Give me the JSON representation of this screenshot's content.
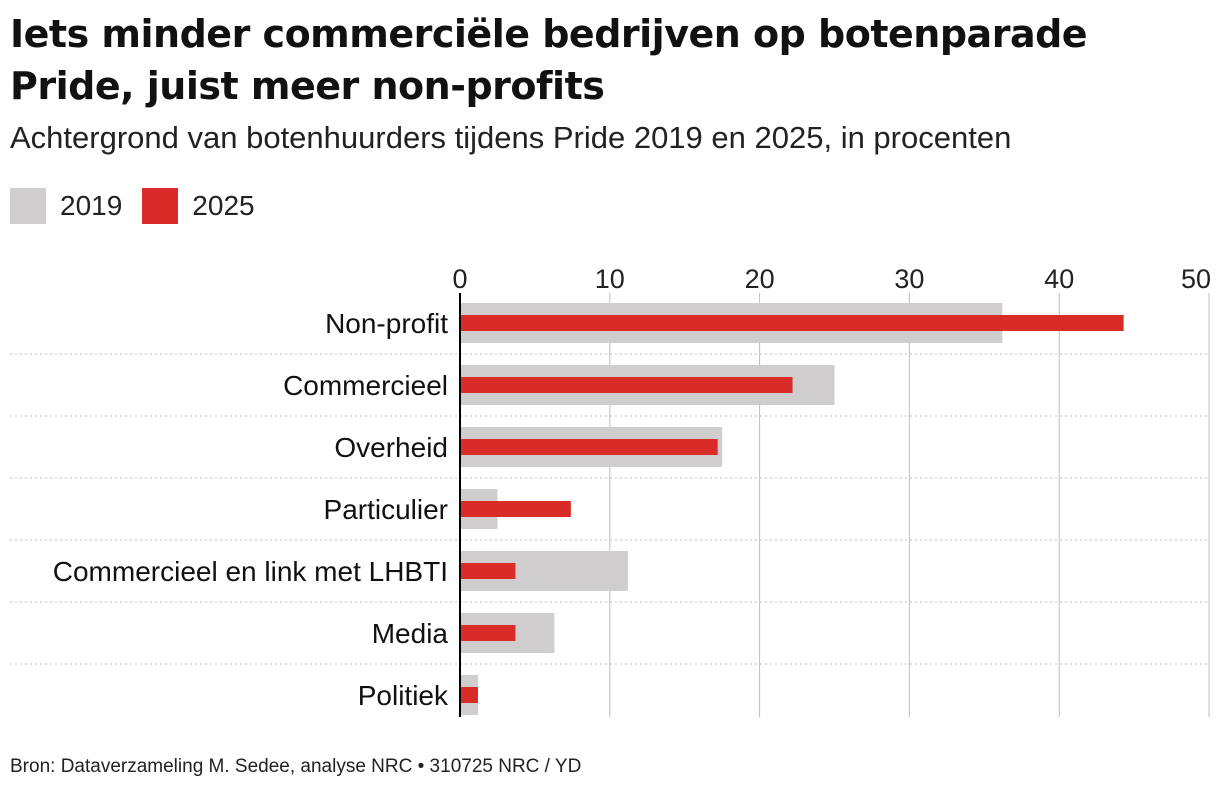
{
  "title": "Iets minder commerciële bedrijven op botenparade Pride, juist meer non-profits",
  "subtitle": "Achtergrond van botenhuurders tijdens Pride 2019 en 2025, in procenten",
  "footer": "Bron: Dataverzameling M. Sedee, analyse NRC  •  310725 NRC / YD",
  "colors": {
    "series_2019": "#cfcdcd",
    "series_2025": "#d92b27",
    "grid": "#bdbdbd",
    "axis": "#000000"
  },
  "chart_data": {
    "type": "bar",
    "orientation": "horizontal",
    "categories": [
      "Non-profit",
      "Commercieel",
      "Overheid",
      "Particulier",
      "Commercieel en link met LHBTI",
      "Media",
      "Politiek"
    ],
    "series": [
      {
        "name": "2019",
        "values": [
          36.2,
          25.0,
          17.5,
          2.5,
          11.2,
          6.3,
          1.2
        ]
      },
      {
        "name": "2025",
        "values": [
          44.3,
          22.2,
          17.2,
          7.4,
          3.7,
          3.7,
          1.2
        ]
      }
    ],
    "xticks": [
      0,
      10,
      20,
      30,
      40,
      50
    ],
    "xlim": [
      0,
      50
    ],
    "grid": true,
    "legend": "top-left"
  }
}
